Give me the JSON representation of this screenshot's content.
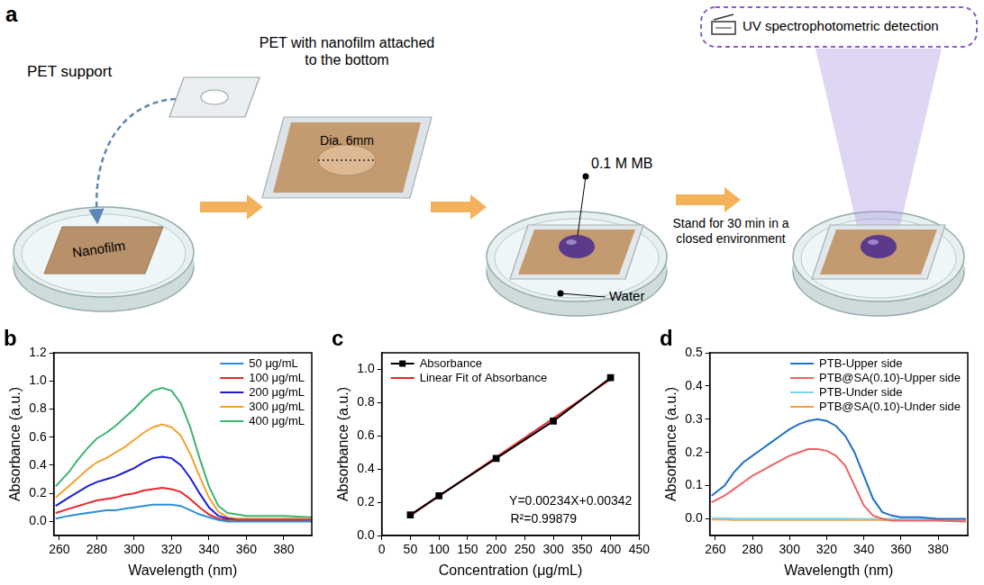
{
  "diagram": {
    "panel": "a",
    "labels": {
      "pet_support": "PET support",
      "nanofilm": "Nanofilm",
      "pet_with_film": "PET with nanofilm attached to the bottom",
      "diameter": "Dia. 6mm",
      "mb": "0.1 M MB",
      "water": "Water",
      "stand": "Stand for 30 min in a closed environment",
      "detection": "UV spectrophotometric detection"
    }
  },
  "chart_data": [
    {
      "panel": "b",
      "type": "line",
      "x_label": "Wavelength (nm)",
      "y_label": "Absorbance (a.u.)",
      "xlim": [
        257,
        395
      ],
      "xticks": [
        260,
        280,
        300,
        320,
        340,
        360,
        380
      ],
      "ylim": [
        -0.1,
        1.2
      ],
      "yticks": [
        {
          "value": 0,
          "label": "0.0"
        },
        0.2,
        0.4,
        0.6,
        0.8,
        {
          "value": 1,
          "label": "1.0"
        },
        1.2
      ],
      "grid": false,
      "legend": "upper right",
      "x": [
        258,
        265,
        270,
        275,
        280,
        285,
        290,
        295,
        300,
        305,
        310,
        315,
        320,
        325,
        330,
        335,
        340,
        345,
        350,
        355,
        360,
        370,
        380,
        395
      ],
      "series": [
        {
          "name": "50 μg/mL",
          "color": "#2a8fdc",
          "values": [
            0.02,
            0.04,
            0.05,
            0.06,
            0.07,
            0.08,
            0.08,
            0.09,
            0.1,
            0.11,
            0.12,
            0.12,
            0.12,
            0.11,
            0.08,
            0.05,
            0.03,
            0.01,
            0.0,
            0.0,
            0.0,
            0.0,
            0.0,
            0.0
          ]
        },
        {
          "name": "100 μg/mL",
          "color": "#e8262a",
          "values": [
            0.06,
            0.09,
            0.11,
            0.13,
            0.15,
            0.16,
            0.17,
            0.19,
            0.2,
            0.22,
            0.23,
            0.24,
            0.23,
            0.21,
            0.16,
            0.1,
            0.05,
            0.02,
            0.01,
            0.01,
            0.01,
            0.01,
            0.01,
            0.01
          ]
        },
        {
          "name": "200 μg/mL",
          "color": "#1c1cd8",
          "values": [
            0.11,
            0.17,
            0.21,
            0.25,
            0.28,
            0.3,
            0.32,
            0.35,
            0.38,
            0.42,
            0.45,
            0.46,
            0.45,
            0.4,
            0.31,
            0.2,
            0.1,
            0.04,
            0.02,
            0.01,
            0.01,
            0.01,
            0.01,
            0.01
          ]
        },
        {
          "name": "300 μg/mL",
          "color": "#f5a030",
          "values": [
            0.17,
            0.25,
            0.31,
            0.37,
            0.42,
            0.45,
            0.49,
            0.53,
            0.58,
            0.63,
            0.67,
            0.69,
            0.67,
            0.61,
            0.48,
            0.32,
            0.17,
            0.07,
            0.03,
            0.02,
            0.02,
            0.02,
            0.02,
            0.02
          ]
        },
        {
          "name": "400 μg/mL",
          "color": "#3cb371",
          "values": [
            0.25,
            0.35,
            0.44,
            0.52,
            0.59,
            0.63,
            0.68,
            0.74,
            0.8,
            0.87,
            0.93,
            0.95,
            0.93,
            0.84,
            0.67,
            0.45,
            0.25,
            0.11,
            0.06,
            0.05,
            0.04,
            0.04,
            0.04,
            0.03
          ]
        }
      ]
    },
    {
      "panel": "c",
      "type": "scatter",
      "x_label": "Concentration (μg/mL)",
      "y_label": "Absorbance (a.u.)",
      "xlim": [
        0,
        450
      ],
      "xticks": [
        0,
        50,
        100,
        150,
        200,
        250,
        300,
        350,
        400,
        450
      ],
      "ylim": [
        0,
        1.1
      ],
      "yticks": [
        {
          "value": 0,
          "label": "0.0"
        },
        0.2,
        0.4,
        0.6,
        0.8,
        {
          "value": 1,
          "label": "1.0"
        }
      ],
      "grid": false,
      "legend": "upper left",
      "annotations": [
        "Y=0.00234X+0.00342",
        "R²=0.99879"
      ],
      "series": [
        {
          "name": "Absorbance",
          "color": "#000000",
          "marker": "square",
          "line_style": "solid",
          "x": [
            50,
            100,
            200,
            300,
            400
          ],
          "values": [
            0.124,
            0.239,
            0.464,
            0.689,
            0.95
          ]
        },
        {
          "name": "Linear Fit of Absorbance",
          "color": "#e8262a",
          "marker": "none",
          "line_style": "solid",
          "x": [
            50,
            400
          ],
          "values": [
            0.12,
            0.94
          ]
        }
      ]
    },
    {
      "panel": "d",
      "type": "line",
      "x_label": "Wavelength (nm)",
      "y_label": "Absorbance (a.u.)",
      "xlim": [
        257,
        396
      ],
      "xticks": [
        260,
        280,
        300,
        320,
        340,
        360,
        380
      ],
      "ylim": [
        -0.05,
        0.5
      ],
      "yticks": [
        {
          "value": 0,
          "label": "0.0"
        },
        0.1,
        0.2,
        0.3,
        0.4,
        0.5
      ],
      "grid": false,
      "legend": "upper right",
      "x": [
        258,
        265,
        270,
        275,
        280,
        285,
        290,
        295,
        300,
        305,
        310,
        315,
        320,
        325,
        330,
        335,
        340,
        345,
        350,
        355,
        360,
        370,
        380,
        395
      ],
      "series": [
        {
          "name": "PTB-Upper side",
          "color": "#1f6fc6",
          "values": [
            0.07,
            0.1,
            0.14,
            0.17,
            0.19,
            0.21,
            0.23,
            0.25,
            0.27,
            0.285,
            0.295,
            0.3,
            0.295,
            0.28,
            0.25,
            0.2,
            0.13,
            0.06,
            0.02,
            0.01,
            0.005,
            0.005,
            0.0,
            0.0
          ]
        },
        {
          "name": "PTB@SA(0.10)-Upper side",
          "color": "#f06262",
          "values": [
            0.05,
            0.07,
            0.09,
            0.11,
            0.13,
            0.145,
            0.16,
            0.175,
            0.19,
            0.2,
            0.21,
            0.21,
            0.205,
            0.19,
            0.16,
            0.1,
            0.04,
            0.01,
            0.0,
            -0.005,
            -0.005,
            -0.005,
            -0.005,
            -0.008
          ]
        },
        {
          "name": "PTB-Under side",
          "color": "#7fd3ef",
          "values": [
            0.002,
            0.002,
            0.001,
            0.001,
            0.001,
            0.001,
            0.001,
            0.001,
            0.001,
            0.001,
            0.001,
            0.001,
            0.001,
            0.001,
            0.001,
            0.0,
            0.0,
            0.0,
            0.0,
            0.0,
            -0.001,
            -0.001,
            -0.001,
            -0.002
          ]
        },
        {
          "name": "PTB@SA(0.10)-Under side",
          "color": "#f5a030",
          "values": [
            -0.002,
            -0.002,
            -0.003,
            -0.003,
            -0.003,
            -0.003,
            -0.003,
            -0.003,
            -0.003,
            -0.003,
            -0.003,
            -0.003,
            -0.003,
            -0.003,
            -0.003,
            -0.003,
            -0.003,
            -0.003,
            -0.003,
            -0.003,
            -0.004,
            -0.004,
            -0.004,
            -0.004
          ]
        }
      ]
    }
  ]
}
